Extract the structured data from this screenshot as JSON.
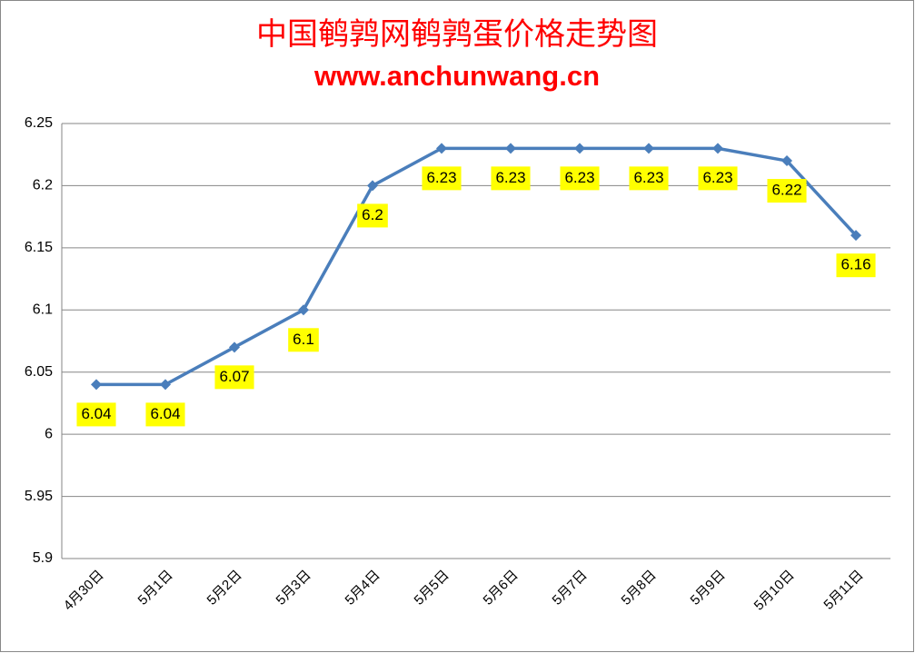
{
  "chart_data": {
    "type": "line",
    "title": "中国鹌鹑网鹌鹑蛋价格走势图",
    "subtitle": "www.anchunwang.cn",
    "categories": [
      "4月30日",
      "5月1日",
      "5月2日",
      "5月3日",
      "5月4日",
      "5月5日",
      "5月6日",
      "5月7日",
      "5月8日",
      "5月9日",
      "5月10日",
      "5月11日"
    ],
    "values": [
      6.04,
      6.04,
      6.07,
      6.1,
      6.2,
      6.23,
      6.23,
      6.23,
      6.23,
      6.23,
      6.22,
      6.16
    ],
    "color": "#4a7ebb",
    "label_color": "#ffff00",
    "ylim": [
      5.9,
      6.25
    ],
    "yticks": [
      5.9,
      5.95,
      6,
      6.05,
      6.1,
      6.15,
      6.2,
      6.25
    ],
    "grid": true
  }
}
